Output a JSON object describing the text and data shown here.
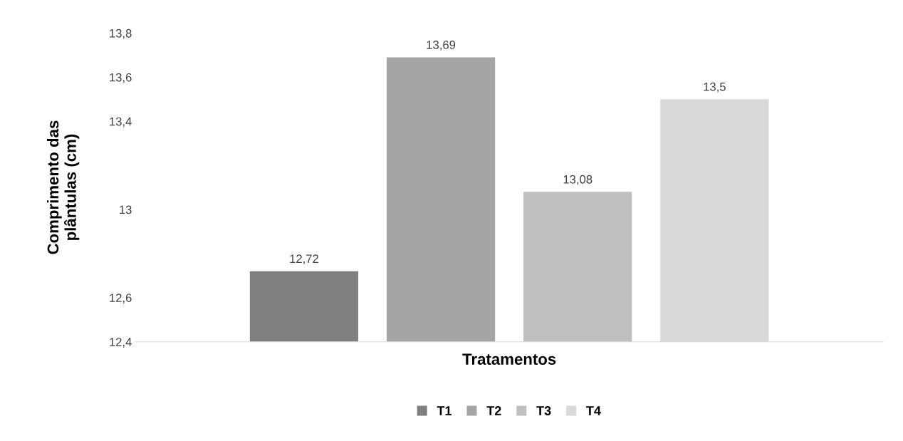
{
  "chart_data": {
    "type": "bar",
    "xlabel": "Tratamentos",
    "ylabel": "Comprimento das\nplântulas (cm)",
    "categories": [
      null
    ],
    "series": [
      {
        "name": "T1",
        "color": "#7f7f7f",
        "values": [
          12.72
        ],
        "value_labels": [
          "12,72"
        ]
      },
      {
        "name": "T2",
        "color": "#a5a5a5",
        "values": [
          13.69
        ],
        "value_labels": [
          "13,69"
        ]
      },
      {
        "name": "T3",
        "color": "#bfbfbf",
        "values": [
          13.08
        ],
        "value_labels": [
          "13,08"
        ]
      },
      {
        "name": "T4",
        "color": "#d9d9d9",
        "values": [
          13.5
        ],
        "value_labels": [
          "13,5"
        ]
      }
    ],
    "ylim": [
      12.4,
      13.8
    ],
    "yticks": [
      {
        "value": 12.4,
        "label": "12,4"
      },
      {
        "value": 12.6,
        "label": "12,6"
      },
      {
        "value": 13,
        "label": "13"
      },
      {
        "value": 13.4,
        "label": "13,4"
      },
      {
        "value": 13.6,
        "label": "13,6"
      },
      {
        "value": 13.8,
        "label": "13,8"
      }
    ],
    "grid": false,
    "legend": "bottom"
  }
}
